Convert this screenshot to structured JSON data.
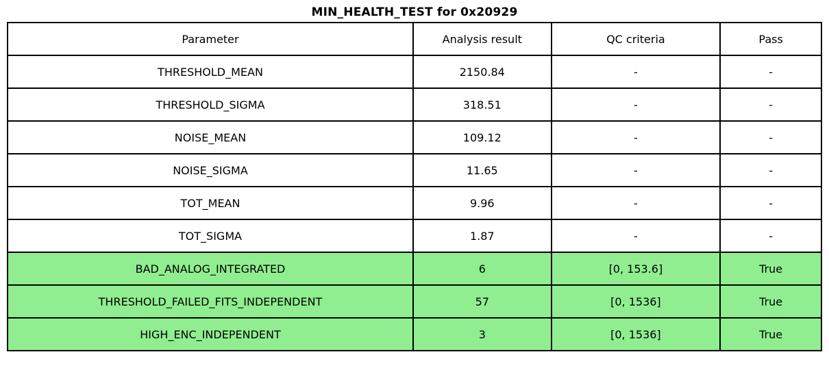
{
  "title": "MIN_HEALTH_TEST for 0x20929",
  "colors": {
    "pass_row_bg": "#90EE90",
    "default_row_bg": "#FFFFFF",
    "border": "#000000",
    "text": "#000000"
  },
  "chart_data": {
    "type": "table",
    "title": "MIN_HEALTH_TEST for 0x20929",
    "columns": [
      "Parameter",
      "Analysis result",
      "QC criteria",
      "Pass"
    ],
    "rows": [
      {
        "parameter": "THRESHOLD_MEAN",
        "analysis_result": "2150.84",
        "qc_criteria": "-",
        "pass": "-",
        "highlight": false
      },
      {
        "parameter": "THRESHOLD_SIGMA",
        "analysis_result": "318.51",
        "qc_criteria": "-",
        "pass": "-",
        "highlight": false
      },
      {
        "parameter": "NOISE_MEAN",
        "analysis_result": "109.12",
        "qc_criteria": "-",
        "pass": "-",
        "highlight": false
      },
      {
        "parameter": "NOISE_SIGMA",
        "analysis_result": "11.65",
        "qc_criteria": "-",
        "pass": "-",
        "highlight": false
      },
      {
        "parameter": "TOT_MEAN",
        "analysis_result": "9.96",
        "qc_criteria": "-",
        "pass": "-",
        "highlight": false
      },
      {
        "parameter": "TOT_SIGMA",
        "analysis_result": "1.87",
        "qc_criteria": "-",
        "pass": "-",
        "highlight": false
      },
      {
        "parameter": "BAD_ANALOG_INTEGRATED",
        "analysis_result": "6",
        "qc_criteria": "[0, 153.6]",
        "pass": "True",
        "highlight": true
      },
      {
        "parameter": "THRESHOLD_FAILED_FITS_INDEPENDENT",
        "analysis_result": "57",
        "qc_criteria": "[0, 1536]",
        "pass": "True",
        "highlight": true
      },
      {
        "parameter": "HIGH_ENC_INDEPENDENT",
        "analysis_result": "3",
        "qc_criteria": "[0, 1536]",
        "pass": "True",
        "highlight": true
      }
    ]
  }
}
